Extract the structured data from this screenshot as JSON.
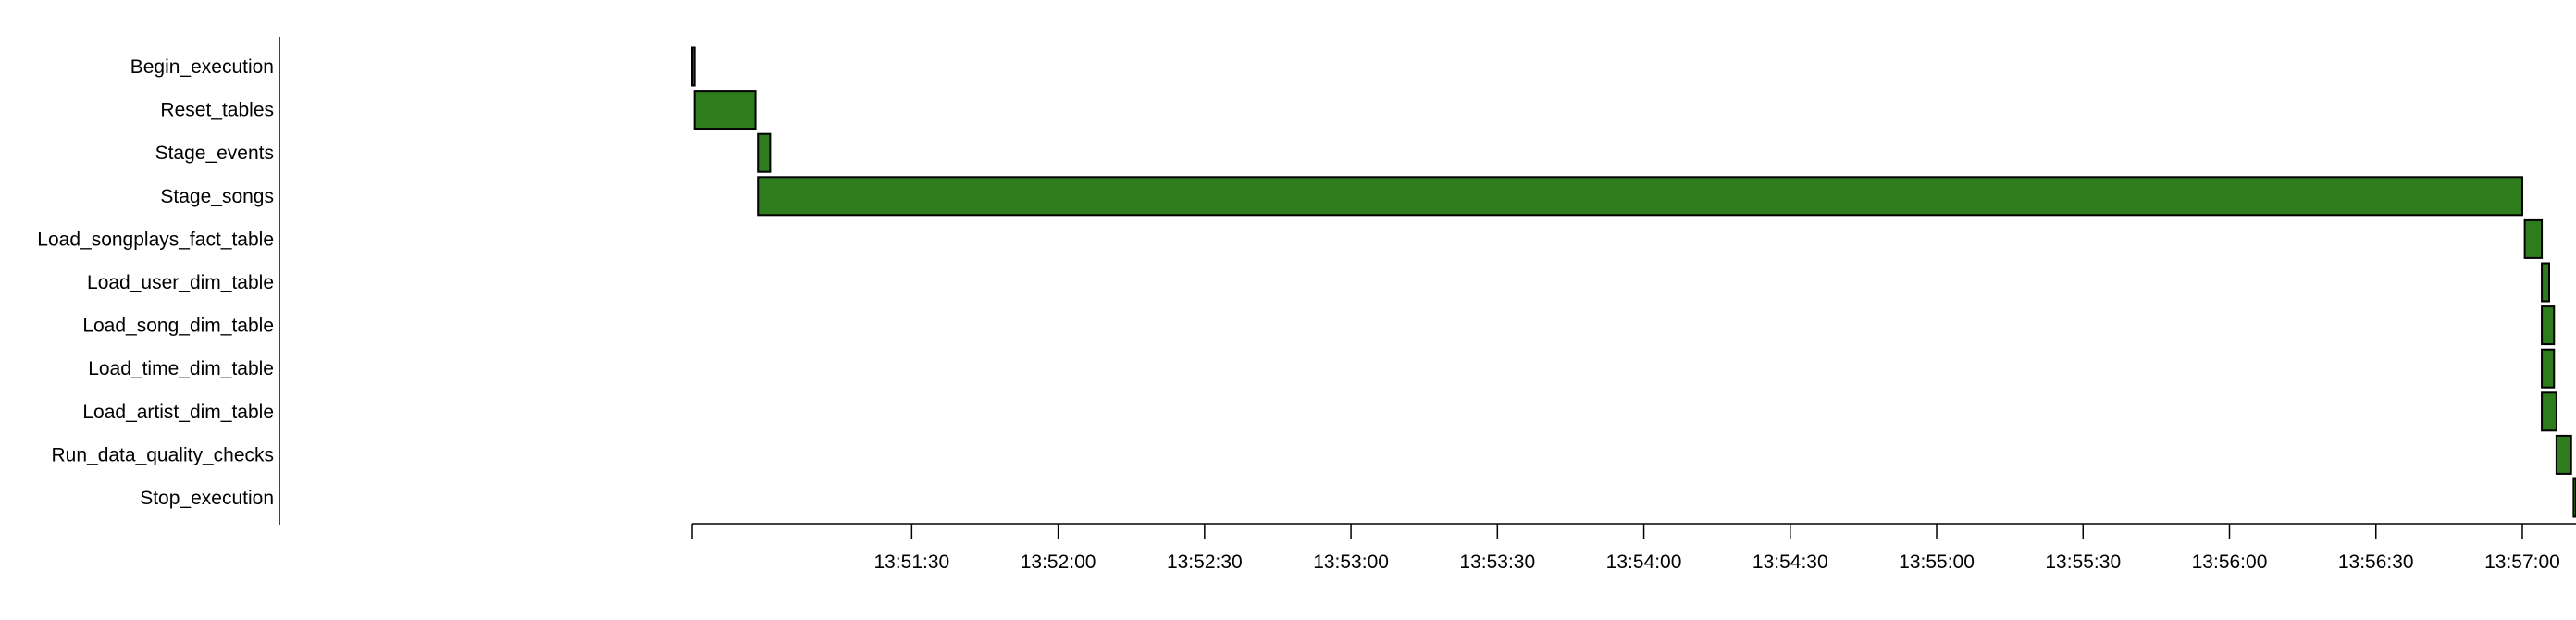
{
  "chart_data": {
    "type": "gantt",
    "title": "",
    "xlabel": "",
    "ylabel": "",
    "bar_color": "#2e7d1c",
    "bar_edge_color": "#000000",
    "x_range": [
      "13:50:45",
      "13:57:11"
    ],
    "x_ticks": [
      "13:51:30",
      "13:52:00",
      "13:52:30",
      "13:53:00",
      "13:53:30",
      "13:54:00",
      "13:54:30",
      "13:55:00",
      "13:55:30",
      "13:56:00",
      "13:56:30",
      "13:57:00"
    ],
    "tasks": [
      {
        "name": "Begin_execution",
        "start": "13:50:45",
        "end": "13:50:45.5"
      },
      {
        "name": "Reset_tables",
        "start": "13:50:45.5",
        "end": "13:50:58"
      },
      {
        "name": "Stage_events",
        "start": "13:50:58.5",
        "end": "13:51:01"
      },
      {
        "name": "Stage_songs",
        "start": "13:50:58.5",
        "end": "13:57:00"
      },
      {
        "name": "Load_songplays_fact_table",
        "start": "13:57:00.5",
        "end": "13:57:04"
      },
      {
        "name": "Load_user_dim_table",
        "start": "13:57:04",
        "end": "13:57:05.5"
      },
      {
        "name": "Load_song_dim_table",
        "start": "13:57:04",
        "end": "13:57:06.5"
      },
      {
        "name": "Load_time_dim_table",
        "start": "13:57:04",
        "end": "13:57:06.5"
      },
      {
        "name": "Load_artist_dim_table",
        "start": "13:57:04",
        "end": "13:57:07"
      },
      {
        "name": "Run_data_quality_checks",
        "start": "13:57:07",
        "end": "13:57:10"
      },
      {
        "name": "Stop_execution",
        "start": "13:57:10.5",
        "end": "13:57:11"
      }
    ]
  }
}
